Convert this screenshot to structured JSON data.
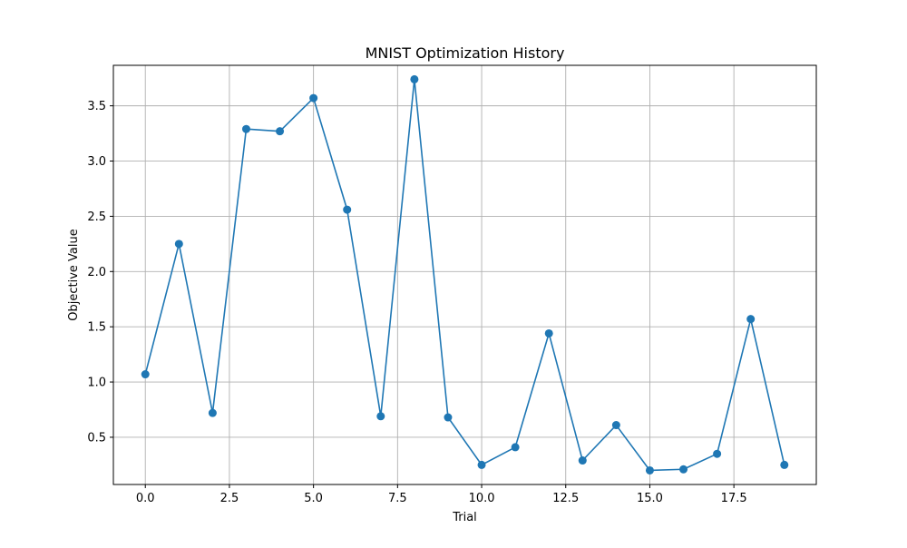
{
  "chart_data": {
    "type": "line",
    "title": "MNIST Optimization History",
    "xlabel": "Trial",
    "ylabel": "Objective Value",
    "x": [
      0,
      1,
      2,
      3,
      4,
      5,
      6,
      7,
      8,
      9,
      10,
      11,
      12,
      13,
      14,
      15,
      16,
      17,
      18,
      19
    ],
    "series": [
      {
        "values": [
          1.07,
          2.25,
          0.72,
          3.29,
          3.27,
          3.57,
          2.56,
          0.69,
          3.74,
          0.68,
          0.25,
          0.41,
          1.44,
          0.29,
          0.61,
          0.2,
          0.21,
          0.35,
          1.57,
          0.25
        ],
        "color": "#1f77b4",
        "marker": "circle"
      }
    ],
    "xlim": [
      -0.95,
      19.95
    ],
    "ylim": [
      0.0725,
      3.8665
    ],
    "xticks": [
      0.0,
      2.5,
      5.0,
      7.5,
      10.0,
      12.5,
      15.0,
      17.5
    ],
    "xtick_labels": [
      "0.0",
      "2.5",
      "5.0",
      "7.5",
      "10.0",
      "12.5",
      "15.0",
      "17.5"
    ],
    "yticks": [
      0.5,
      1.0,
      1.5,
      2.0,
      2.5,
      3.0,
      3.5
    ],
    "ytick_labels": [
      "0.5",
      "1.0",
      "1.5",
      "2.0",
      "2.5",
      "3.0",
      "3.5"
    ],
    "grid": true,
    "grid_color": "#b0b0b0",
    "legend": "none"
  }
}
